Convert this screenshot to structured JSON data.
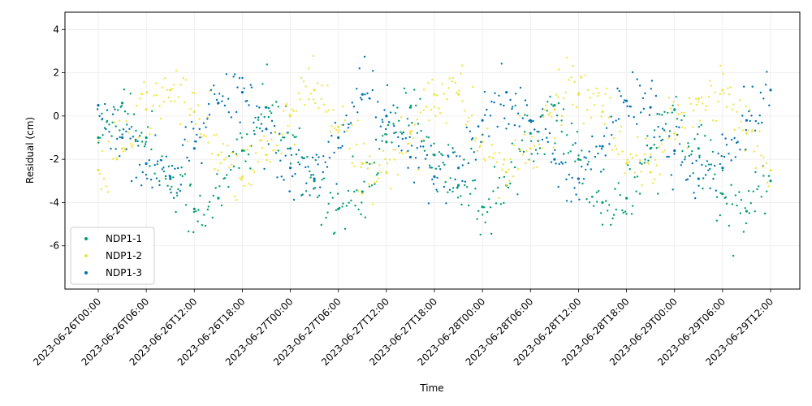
{
  "chart_data": {
    "type": "scatter",
    "title": "",
    "xlabel": "Time",
    "ylabel": "Residual (cm)",
    "x_range": [
      "2023-06-26T00:00",
      "2023-06-29T14:00"
    ],
    "x_ticks": [
      "2023-06-26T00:00",
      "2023-06-26T06:00",
      "2023-06-26T12:00",
      "2023-06-26T18:00",
      "2023-06-27T00:00",
      "2023-06-27T06:00",
      "2023-06-27T12:00",
      "2023-06-27T18:00",
      "2023-06-28T00:00",
      "2023-06-28T06:00",
      "2023-06-28T12:00",
      "2023-06-28T18:00",
      "2023-06-29T00:00",
      "2023-06-29T06:00",
      "2023-06-29T12:00"
    ],
    "ylim": [
      -8,
      4.8
    ],
    "y_ticks": [
      4,
      2,
      0,
      -2,
      -4,
      -6
    ],
    "grid": true,
    "legend_position": "bottom-left",
    "series": [
      {
        "name": "NDP1-1",
        "color": "#009e73",
        "points": [
          {
            "x": "2023-06-26T00:00",
            "y": -1.0
          },
          {
            "x": "2023-06-26T03:00",
            "y": 0.6
          },
          {
            "x": "2023-06-26T06:00",
            "y": -1.0
          },
          {
            "x": "2023-06-26T09:00",
            "y": -2.8
          },
          {
            "x": "2023-06-26T12:00",
            "y": -4.3
          },
          {
            "x": "2023-06-26T15:00",
            "y": -3.8
          },
          {
            "x": "2023-06-26T18:00",
            "y": -1.6
          },
          {
            "x": "2023-06-26T21:00",
            "y": 0.4
          },
          {
            "x": "2023-06-27T00:00",
            "y": -1.5
          },
          {
            "x": "2023-06-27T03:00",
            "y": -3.0
          },
          {
            "x": "2023-06-27T06:00",
            "y": -4.3
          },
          {
            "x": "2023-06-27T09:00",
            "y": -3.5
          },
          {
            "x": "2023-06-27T12:00",
            "y": -1.2
          },
          {
            "x": "2023-06-27T15:00",
            "y": 0.4
          },
          {
            "x": "2023-06-27T18:00",
            "y": -1.8
          },
          {
            "x": "2023-06-27T21:00",
            "y": -3.2
          },
          {
            "x": "2023-06-28T00:00",
            "y": -4.2
          },
          {
            "x": "2023-06-28T03:00",
            "y": -3.2
          },
          {
            "x": "2023-06-28T06:00",
            "y": -0.8
          },
          {
            "x": "2023-06-28T09:00",
            "y": 0.5
          },
          {
            "x": "2023-06-28T12:00",
            "y": -2.0
          },
          {
            "x": "2023-06-28T15:00",
            "y": -4.0
          },
          {
            "x": "2023-06-28T18:00",
            "y": -3.8
          },
          {
            "x": "2023-06-28T21:00",
            "y": -1.5
          },
          {
            "x": "2023-06-29T00:00",
            "y": 0.3
          },
          {
            "x": "2023-06-29T03:00",
            "y": -1.5
          },
          {
            "x": "2023-06-29T06:00",
            "y": -3.6
          },
          {
            "x": "2023-06-29T09:00",
            "y": -4.4
          },
          {
            "x": "2023-06-29T12:00",
            "y": -3.0
          }
        ]
      },
      {
        "name": "NDP1-2",
        "color": "#f0e442",
        "points": [
          {
            "x": "2023-06-26T00:00",
            "y": -2.5
          },
          {
            "x": "2023-06-26T03:00",
            "y": -1.5
          },
          {
            "x": "2023-06-26T06:00",
            "y": 0.3
          },
          {
            "x": "2023-06-26T09:00",
            "y": 1.2
          },
          {
            "x": "2023-06-26T12:00",
            "y": 0.2
          },
          {
            "x": "2023-06-26T15:00",
            "y": -1.8
          },
          {
            "x": "2023-06-26T18:00",
            "y": -2.8
          },
          {
            "x": "2023-06-26T21:00",
            "y": -1.8
          },
          {
            "x": "2023-06-27T00:00",
            "y": 0.0
          },
          {
            "x": "2023-06-27T03:00",
            "y": 1.2
          },
          {
            "x": "2023-06-27T06:00",
            "y": -0.5
          },
          {
            "x": "2023-06-27T09:00",
            "y": -2.2
          },
          {
            "x": "2023-06-27T12:00",
            "y": -2.6
          },
          {
            "x": "2023-06-27T15:00",
            "y": -0.8
          },
          {
            "x": "2023-06-27T18:00",
            "y": 1.0
          },
          {
            "x": "2023-06-27T21:00",
            "y": 1.0
          },
          {
            "x": "2023-06-28T00:00",
            "y": -1.2
          },
          {
            "x": "2023-06-28T03:00",
            "y": -2.6
          },
          {
            "x": "2023-06-28T06:00",
            "y": -1.5
          },
          {
            "x": "2023-06-28T09:00",
            "y": 0.3
          },
          {
            "x": "2023-06-28T12:00",
            "y": 1.0
          },
          {
            "x": "2023-06-28T15:00",
            "y": 0.2
          },
          {
            "x": "2023-06-28T18:00",
            "y": -2.2
          },
          {
            "x": "2023-06-28T21:00",
            "y": -2.6
          },
          {
            "x": "2023-06-29T00:00",
            "y": -0.8
          },
          {
            "x": "2023-06-29T03:00",
            "y": 0.8
          },
          {
            "x": "2023-06-29T06:00",
            "y": 1.2
          },
          {
            "x": "2023-06-29T09:00",
            "y": -0.8
          },
          {
            "x": "2023-06-29T12:00",
            "y": -2.5
          }
        ]
      },
      {
        "name": "NDP1-3",
        "color": "#0072b2",
        "points": [
          {
            "x": "2023-06-26T00:00",
            "y": 0.5
          },
          {
            "x": "2023-06-26T03:00",
            "y": -1.0
          },
          {
            "x": "2023-06-26T06:00",
            "y": -2.2
          },
          {
            "x": "2023-06-26T09:00",
            "y": -2.9
          },
          {
            "x": "2023-06-26T12:00",
            "y": -1.5
          },
          {
            "x": "2023-06-26T15:00",
            "y": 0.6
          },
          {
            "x": "2023-06-26T18:00",
            "y": 1.1
          },
          {
            "x": "2023-06-26T21:00",
            "y": -0.6
          },
          {
            "x": "2023-06-27T00:00",
            "y": -2.4
          },
          {
            "x": "2023-06-27T03:00",
            "y": -2.9
          },
          {
            "x": "2023-06-27T06:00",
            "y": -1.0
          },
          {
            "x": "2023-06-27T09:00",
            "y": 1.0
          },
          {
            "x": "2023-06-27T12:00",
            "y": 0.0
          },
          {
            "x": "2023-06-27T15:00",
            "y": -1.9
          },
          {
            "x": "2023-06-27T18:00",
            "y": -2.8
          },
          {
            "x": "2023-06-27T21:00",
            "y": -2.4
          },
          {
            "x": "2023-06-28T00:00",
            "y": -0.2
          },
          {
            "x": "2023-06-28T03:00",
            "y": 1.1
          },
          {
            "x": "2023-06-28T06:00",
            "y": -0.2
          },
          {
            "x": "2023-06-28T09:00",
            "y": -2.0
          },
          {
            "x": "2023-06-28T12:00",
            "y": -2.9
          },
          {
            "x": "2023-06-28T15:00",
            "y": -1.4
          },
          {
            "x": "2023-06-28T18:00",
            "y": 0.7
          },
          {
            "x": "2023-06-28T21:00",
            "y": 0.4
          },
          {
            "x": "2023-06-29T00:00",
            "y": -1.6
          },
          {
            "x": "2023-06-29T03:00",
            "y": -2.9
          },
          {
            "x": "2023-06-29T06:00",
            "y": -2.4
          },
          {
            "x": "2023-06-29T09:00",
            "y": -0.2
          },
          {
            "x": "2023-06-29T12:00",
            "y": 1.2
          }
        ]
      }
    ]
  }
}
